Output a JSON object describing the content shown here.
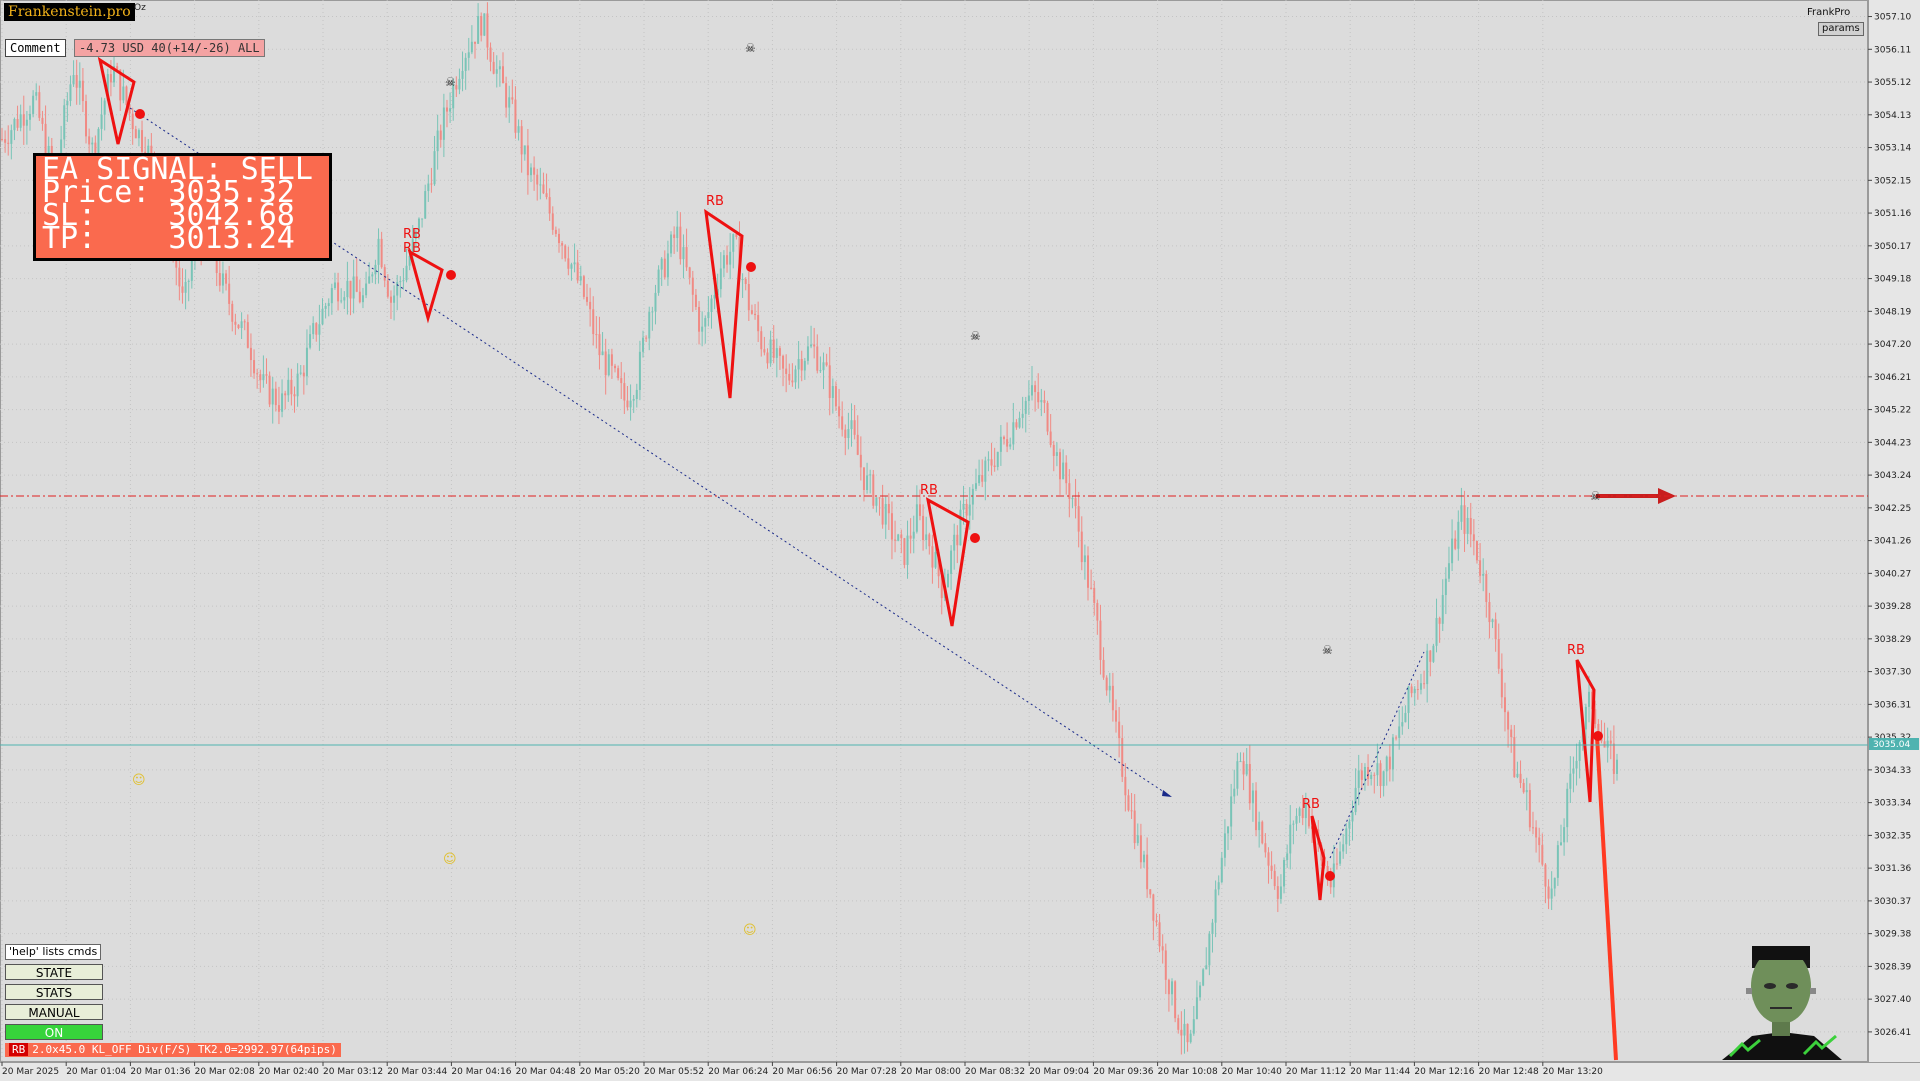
{
  "header": {
    "logo": "Frankenstein.pro",
    "logo_suffix": "Oz",
    "comment_label": "Comment",
    "pnl": "-4.73 USD 40(+14/-26) ALL",
    "brand_right": "FrankPro",
    "params_button": "params"
  },
  "signal": {
    "title": "EA SIGNAL: SELL",
    "price_line": "Price: 3035.32",
    "sl_line": "SL:    3042.68",
    "tp_line": "TP:    3013.24"
  },
  "commands": {
    "help": "'help' lists cmds",
    "state": "STATE",
    "stats": "STATS",
    "manual": "MANUAL",
    "on": "ON"
  },
  "status_bar": {
    "tag": "RB",
    "text": "2.0x45.0 KL_OFF Div(F/S) TK2.0=2992.97(64pips)"
  },
  "price_axis": {
    "labels": [
      "3057.10",
      "3056.11",
      "3055.12",
      "3054.13",
      "3053.14",
      "3052.15",
      "3051.16",
      "3050.17",
      "3049.18",
      "3048.19",
      "3047.20",
      "3046.21",
      "3045.22",
      "3044.23",
      "3043.24",
      "3042.25",
      "3041.26",
      "3040.27",
      "3039.28",
      "3038.29",
      "3037.30",
      "3036.31",
      "3035.32",
      "3034.33",
      "3033.34",
      "3032.35",
      "3031.36",
      "3030.37",
      "3029.38",
      "3028.39",
      "3027.40",
      "3026.41"
    ],
    "current_price": "3035.04"
  },
  "time_axis": {
    "labels": [
      "20 Mar 2025",
      "20 Mar 01:04",
      "20 Mar 01:36",
      "20 Mar 02:08",
      "20 Mar 02:40",
      "20 Mar 03:12",
      "20 Mar 03:44",
      "20 Mar 04:16",
      "20 Mar 04:48",
      "20 Mar 05:20",
      "20 Mar 05:52",
      "20 Mar 06:24",
      "20 Mar 06:56",
      "20 Mar 07:28",
      "20 Mar 08:00",
      "20 Mar 08:32",
      "20 Mar 09:04",
      "20 Mar 09:36",
      "20 Mar 10:08",
      "20 Mar 10:40",
      "20 Mar 11:12",
      "20 Mar 11:44",
      "20 Mar 12:16",
      "20 Mar 12:48",
      "20 Mar 13:20"
    ]
  },
  "markers": {
    "rb_label": "RB"
  },
  "chart_data": {
    "type": "candlestick",
    "symbol_timeframe": "",
    "ylim": [
      3025.5,
      3057.6
    ],
    "sl_level": 3042.68,
    "current_level": 3035.04,
    "colors": {
      "bull": "#79c4b7",
      "bear": "#f08a84",
      "sl_line": "#e02020",
      "trend": "#1a2a8a"
    },
    "price_path": [
      [
        0,
        3053.4
      ],
      [
        5,
        3054.6
      ],
      [
        8,
        3052.2
      ],
      [
        11,
        3055.6
      ],
      [
        14,
        3053.0
      ],
      [
        17,
        3055.6
      ],
      [
        20,
        3054.0
      ],
      [
        23,
        3052.8
      ],
      [
        26,
        3050.5
      ],
      [
        28,
        3048.3
      ],
      [
        30,
        3050.5
      ],
      [
        33,
        3049.5
      ],
      [
        36,
        3048.0
      ],
      [
        38,
        3047.3
      ],
      [
        40,
        3046.0
      ],
      [
        43,
        3045.4
      ],
      [
        46,
        3046.2
      ],
      [
        48,
        3047.5
      ],
      [
        51,
        3048.9
      ],
      [
        53,
        3049.0
      ],
      [
        56,
        3048.5
      ],
      [
        58,
        3050.4
      ],
      [
        60,
        3048.5
      ],
      [
        62,
        3049.4
      ],
      [
        64,
        3050.5
      ],
      [
        66,
        3052.3
      ],
      [
        68,
        3053.9
      ],
      [
        71,
        3055.9
      ],
      [
        74,
        3057.0
      ],
      [
        76,
        3055.6
      ],
      [
        79,
        3054.0
      ],
      [
        81,
        3052.5
      ],
      [
        83,
        3051.8
      ],
      [
        86,
        3050.5
      ],
      [
        88,
        3049.5
      ],
      [
        90,
        3048.5
      ],
      [
        92,
        3047.0
      ],
      [
        94,
        3046.3
      ],
      [
        96,
        3045.5
      ],
      [
        98,
        3046.2
      ],
      [
        100,
        3048.5
      ],
      [
        102,
        3049.5
      ],
      [
        104,
        3050.6
      ],
      [
        106,
        3049.0
      ],
      [
        108,
        3047.5
      ],
      [
        111,
        3049.7
      ],
      [
        113,
        3050.2
      ],
      [
        115,
        3048.5
      ],
      [
        117,
        3047.3
      ],
      [
        119,
        3046.8
      ],
      [
        121,
        3046.1
      ],
      [
        123,
        3046.8
      ],
      [
        125,
        3047.1
      ],
      [
        127,
        3046.3
      ],
      [
        129,
        3045.1
      ],
      [
        131,
        3044.5
      ],
      [
        133,
        3043.1
      ],
      [
        135,
        3042.5
      ],
      [
        137,
        3041.6
      ],
      [
        139,
        3040.8
      ],
      [
        141,
        3042.0
      ],
      [
        143,
        3041.2
      ],
      [
        145,
        3039.8
      ],
      [
        147,
        3041.3
      ],
      [
        149,
        3042.5
      ],
      [
        151,
        3043.1
      ],
      [
        153,
        3043.8
      ],
      [
        155,
        3044.4
      ],
      [
        157,
        3045.3
      ],
      [
        159,
        3045.7
      ],
      [
        161,
        3045.1
      ],
      [
        163,
        3043.5
      ],
      [
        165,
        3042.6
      ],
      [
        167,
        3040.5
      ],
      [
        169,
        3038.5
      ],
      [
        171,
        3036.2
      ],
      [
        173,
        3034.1
      ],
      [
        175,
        3032.2
      ],
      [
        177,
        3030.7
      ],
      [
        179,
        3028.7
      ],
      [
        181,
        3027.0
      ],
      [
        183,
        3025.8
      ],
      [
        185,
        3027.8
      ],
      [
        187,
        3030.4
      ],
      [
        189,
        3032.8
      ],
      [
        191,
        3035.0
      ],
      [
        193,
        3033.2
      ],
      [
        195,
        3031.8
      ],
      [
        197,
        3030.6
      ],
      [
        199,
        3032.8
      ],
      [
        201,
        3033.3
      ],
      [
        203,
        3031.9
      ],
      [
        205,
        3030.8
      ],
      [
        207,
        3032.3
      ],
      [
        209,
        3034.1
      ],
      [
        211,
        3034.5
      ],
      [
        213,
        3034.2
      ],
      [
        215,
        3035.2
      ],
      [
        217,
        3036.5
      ],
      [
        219,
        3037.2
      ],
      [
        221,
        3038.5
      ],
      [
        223,
        3040.5
      ],
      [
        225,
        3042.0
      ],
      [
        227,
        3041.2
      ],
      [
        229,
        3039.6
      ],
      [
        231,
        3037.2
      ],
      [
        233,
        3034.5
      ],
      [
        235,
        3033.5
      ],
      [
        237,
        3031.8
      ],
      [
        239,
        3030.5
      ],
      [
        241,
        3033.0
      ],
      [
        243,
        3035.2
      ],
      [
        245,
        3036.5
      ],
      [
        247,
        3035.0
      ],
      [
        249,
        3034.4
      ]
    ]
  }
}
